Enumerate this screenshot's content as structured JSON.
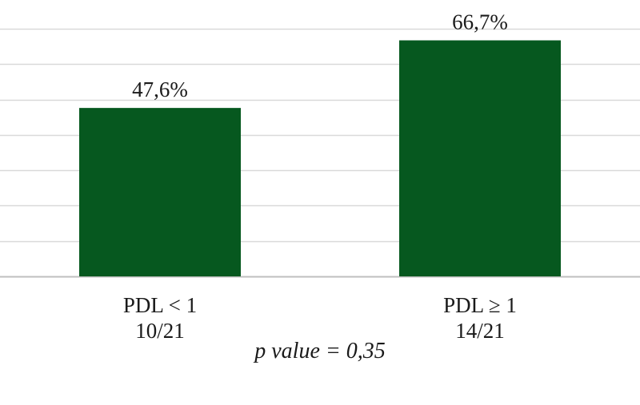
{
  "chart_data": {
    "type": "bar",
    "categories": [
      "PDL < 1",
      "PDL ≥ 1"
    ],
    "category_sublabels": [
      "10/21",
      "14/21"
    ],
    "values": [
      47.6,
      66.7
    ],
    "data_labels": [
      "47,6%",
      "66,7%"
    ],
    "ylim": [
      0,
      80
    ],
    "grid": true,
    "annotation": "p value = 0,35",
    "colors": {
      "bar": "#06581f",
      "grid": "#d9d9d9",
      "axis": "#bfbfbf"
    }
  }
}
